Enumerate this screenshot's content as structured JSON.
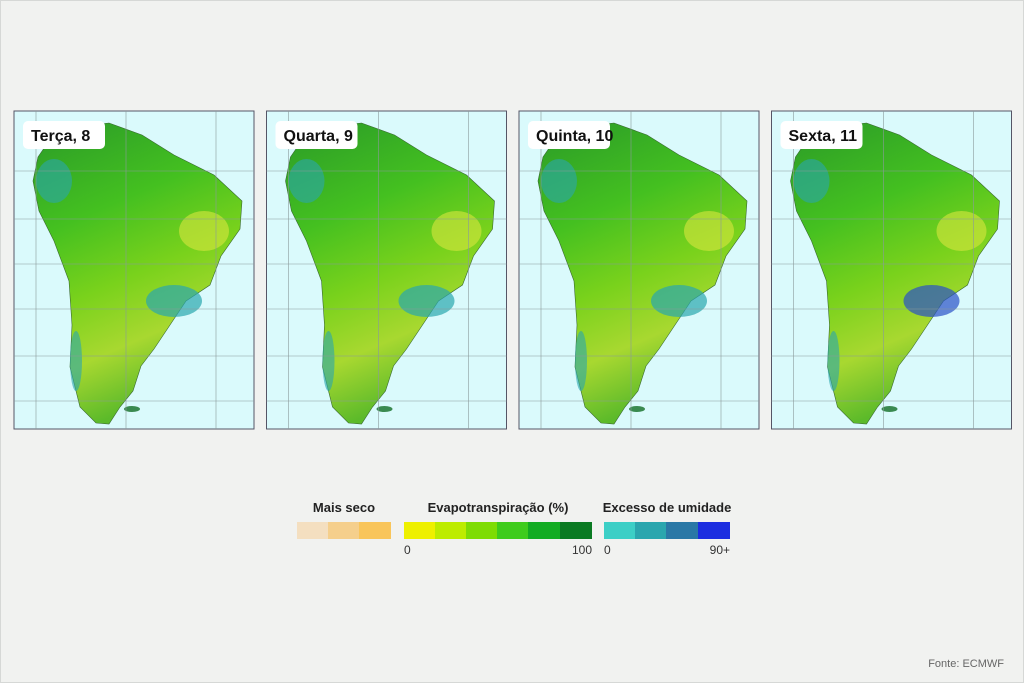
{
  "panels": [
    {
      "label": "Terça, 8"
    },
    {
      "label": "Quarta, 9"
    },
    {
      "label": "Quinta, 10"
    },
    {
      "label": "Sexta, 11"
    }
  ],
  "legend": {
    "dry": {
      "title": "Mais seco"
    },
    "evapotranspiration": {
      "title": "Evapotranspiração (%)",
      "min_label": "0",
      "max_label": "100"
    },
    "excess": {
      "title": "Excesso de umidade",
      "min_label": "0",
      "max_label": "90+"
    }
  },
  "source": "Fonte: ECMWF"
}
